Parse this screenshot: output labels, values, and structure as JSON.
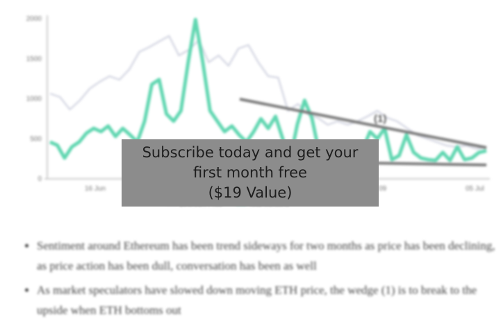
{
  "chart_data": {
    "type": "line",
    "title": "",
    "xlabel": "",
    "ylabel": "",
    "ylim": [
      0,
      2000
    ],
    "y_ticks": [
      "0",
      "500",
      "1000",
      "1500",
      "2000"
    ],
    "x_ticks": [
      "16 Jun",
      "09",
      "05 Jul"
    ],
    "grid": false,
    "legend": "bottom",
    "series": [
      {
        "name": "Ethereum Price",
        "color": "#d5d7e3",
        "values": [
          1065,
          1022,
          866,
          979,
          1126,
          1212,
          1282,
          1238,
          1368,
          1585,
          1645,
          1715,
          1784,
          1541,
          1611,
          1732,
          1455,
          1541,
          1412,
          1628,
          1671,
          1455,
          1282,
          1264,
          849,
          935,
          805,
          762,
          675,
          719,
          675,
          719,
          779,
          849,
          762,
          719,
          632,
          546,
          502,
          459,
          416,
          398,
          416,
          372,
          398
        ]
      },
      {
        "name": "Total Mentions",
        "color": "#5fd6b0",
        "values": [
          460,
          420,
          260,
          400,
          460,
          570,
          630,
          590,
          660,
          530,
          630,
          550,
          460,
          720,
          1180,
          1240,
          810,
          720,
          850,
          1460,
          1990,
          1460,
          850,
          720,
          590,
          660,
          550,
          460,
          590,
          750,
          630,
          780,
          500,
          240,
          680,
          980,
          760,
          330,
          240,
          290,
          260,
          230,
          290,
          370,
          590,
          500,
          630,
          240,
          290,
          550,
          330,
          260,
          240,
          230,
          330,
          230,
          400,
          240,
          260,
          330,
          350
        ]
      }
    ],
    "annotations": [
      {
        "label": "(1)",
        "type": "falling-wedge"
      }
    ]
  },
  "article": {
    "bullets": [
      "Sentiment around Ethereum has been trend sideways for two months as price has been declining, as price action has been dull, conversation has been as well",
      "As market speculators have slowed down moving ETH price, the wedge (1) is to break to the upside when ETH bottoms out"
    ]
  },
  "paywall": {
    "line1": "Subscribe today and get your",
    "line2": "first month free",
    "line3": "($19 Value)"
  }
}
